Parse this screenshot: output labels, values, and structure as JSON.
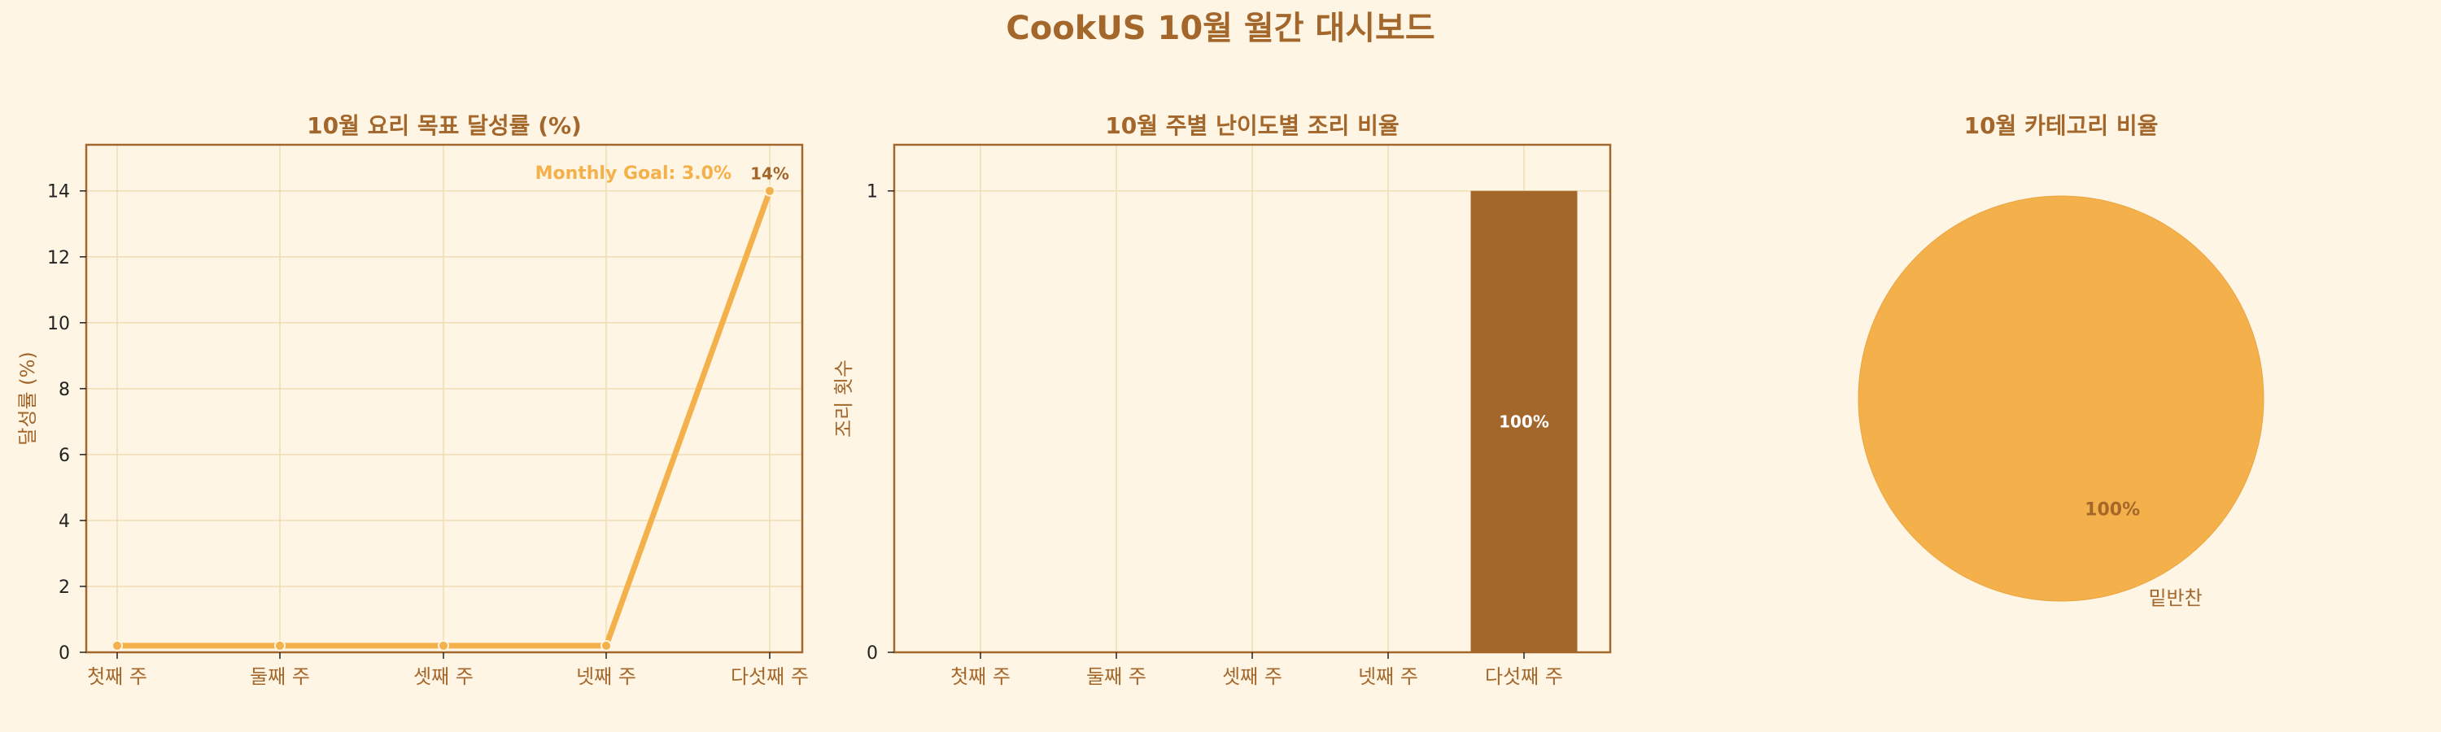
{
  "page": {
    "title": "CookUS 10월 월간 대시보드"
  },
  "colors": {
    "background": "#FFF5E4",
    "accent": "#F4B04A",
    "brown": "#A3662B",
    "grid": "#EFDDB5",
    "text_dark": "#222222"
  },
  "chart_data": [
    {
      "type": "line",
      "title": "10월 요리 목표 달성률 (%)",
      "xlabel": "",
      "ylabel": "달성률 (%)",
      "categories": [
        "첫째 주",
        "둘째 주",
        "셋째 주",
        "넷째 주",
        "다섯째 주"
      ],
      "values": [
        0.2,
        0.2,
        0.2,
        0.2,
        14
      ],
      "yticks": [
        0,
        2,
        4,
        6,
        8,
        10,
        12,
        14
      ],
      "ylim": [
        0,
        15.4
      ],
      "point_labels": [
        "",
        "",
        "",
        "",
        "14%"
      ],
      "annotation": "Monthly Goal: 3.0%",
      "grid": true
    },
    {
      "type": "bar",
      "title": "10월 주별 난이도별 조리 비율",
      "xlabel": "",
      "ylabel": "조리 횟수",
      "categories": [
        "첫째 주",
        "둘째 주",
        "셋째 주",
        "넷째 주",
        "다섯째 주"
      ],
      "values": [
        0,
        0,
        0,
        0,
        1
      ],
      "bar_labels": [
        "",
        "",
        "",
        "",
        "100%"
      ],
      "yticks": [
        0,
        1
      ],
      "ylim": [
        0,
        1.1
      ],
      "grid": true
    },
    {
      "type": "pie",
      "title": "10월 카테고리 비율",
      "slices": [
        {
          "label": "밑반찬",
          "value": 100,
          "pct_label": "100%"
        }
      ]
    }
  ]
}
